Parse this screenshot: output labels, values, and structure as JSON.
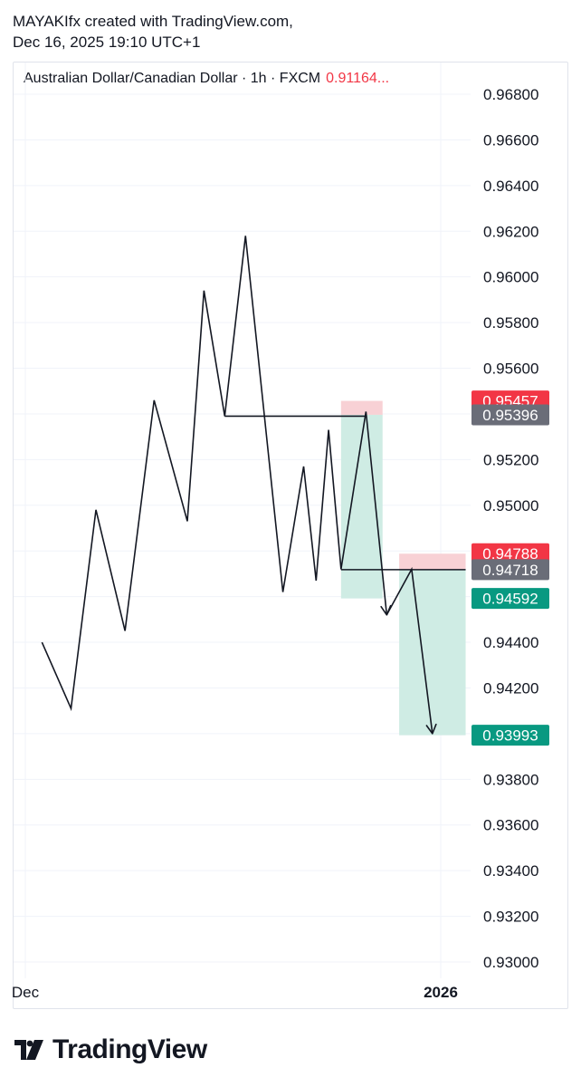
{
  "header": {
    "line1": "MAYAKIfx created with TradingView.com,",
    "line2": "Dec 16, 2025 19:10 UTC+1"
  },
  "legend": {
    "symbol": "Australian Dollar/Canadian Dollar · 1h · FXCM",
    "price": "0.91164..."
  },
  "footer": {
    "brand": "TradingView"
  },
  "colors": {
    "line": "#131722",
    "stop_zone": "#f8d1d5",
    "target_zone": "#cfece4",
    "red_label": "#f23645",
    "gray_label": "#6a6d78",
    "green_label": "#089981",
    "grid": "#f0f3fa",
    "axis_text": "#131722"
  },
  "chart_data": {
    "type": "line",
    "title": "Australian Dollar/Canadian Dollar · 1h · FXCM",
    "ylim": [
      0.93,
      0.968
    ],
    "y_ticks": [
      "0.96800",
      "0.96600",
      "0.96400",
      "0.96200",
      "0.96000",
      "0.95800",
      "0.95600",
      "0.95400",
      "0.95200",
      "0.95000",
      "0.94800",
      "0.94600",
      "0.94400",
      "0.94200",
      "0.94000",
      "0.93800",
      "0.93600",
      "0.93400",
      "0.93200",
      "0.93000"
    ],
    "x_ticks": [
      {
        "label": "Dec",
        "t": 0.0,
        "bold": false
      },
      {
        "label": "2026",
        "t": 1.0,
        "bold": true
      }
    ],
    "xlabel": "",
    "ylabel": "",
    "grid": true,
    "series": [
      {
        "points": [
          [
            0.04,
            0.944
          ],
          [
            0.11,
            0.9411
          ],
          [
            0.17,
            0.9498
          ],
          [
            0.24,
            0.9445
          ],
          [
            0.31,
            0.9546
          ],
          [
            0.39,
            0.9493
          ],
          [
            0.43,
            0.9594
          ],
          [
            0.48,
            0.9539
          ],
          [
            0.53,
            0.9618
          ],
          [
            0.62,
            0.9462
          ],
          [
            0.67,
            0.9517
          ],
          [
            0.7,
            0.9467
          ],
          [
            0.73,
            0.9533
          ],
          [
            0.76,
            0.9472
          ],
          [
            0.82,
            0.9541
          ],
          [
            0.87,
            0.9452
          ]
        ]
      },
      {
        "points": [
          [
            0.87,
            0.9452
          ],
          [
            0.93,
            0.9472
          ],
          [
            0.98,
            0.94
          ]
        ]
      }
    ],
    "levels": [
      {
        "from": 0.48,
        "to": 0.82,
        "y": 0.9539
      },
      {
        "from": 0.76,
        "to": 1.06,
        "y": 0.94718
      }
    ],
    "positions": [
      {
        "from": 0.76,
        "to": 0.86,
        "entry": 0.95396,
        "stop": 0.95457,
        "target": 0.94592
      },
      {
        "from": 0.9,
        "to": 1.06,
        "entry": 0.94718,
        "stop": 0.94788,
        "target": 0.93993
      }
    ],
    "price_labels": [
      {
        "value": 0.95457,
        "text": "0.95457",
        "kind": "red"
      },
      {
        "value": 0.95396,
        "text": "0.95396",
        "kind": "gray"
      },
      {
        "value": 0.94788,
        "text": "0.94788",
        "kind": "red"
      },
      {
        "value": 0.94718,
        "text": "0.94718",
        "kind": "gray"
      },
      {
        "value": 0.94592,
        "text": "0.94592",
        "kind": "green"
      },
      {
        "value": 0.93993,
        "text": "0.93993",
        "kind": "green"
      }
    ]
  }
}
